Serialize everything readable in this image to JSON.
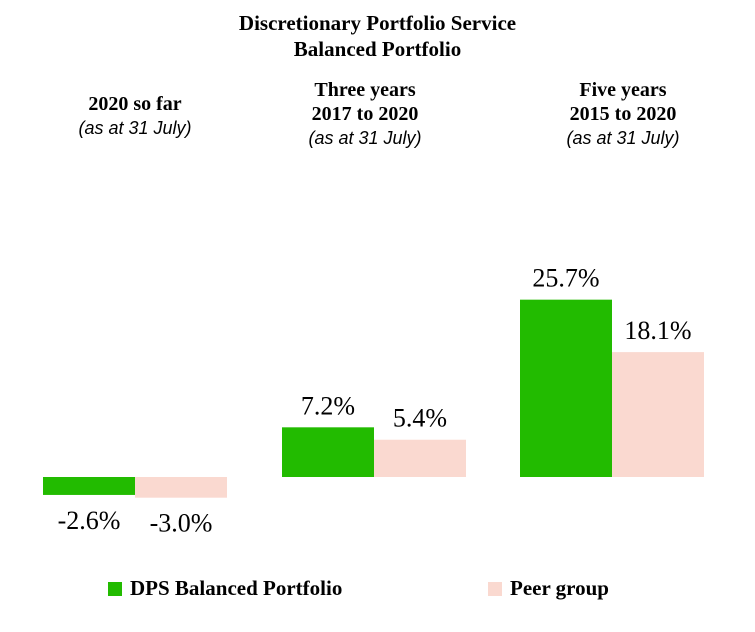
{
  "chart_data": {
    "type": "bar",
    "title": "Discretionary Portfolio Service",
    "subtitle": "Balanced Portfolio",
    "categories": [
      {
        "label": "2020 so far",
        "sublabel": "",
        "note": "(as at 31 July)"
      },
      {
        "label": "Three years",
        "sublabel": "2017 to 2020",
        "note": "(as at 31 July)"
      },
      {
        "label": "Five years",
        "sublabel": "2015 to 2020",
        "note": "(as at 31 July)"
      }
    ],
    "series": [
      {
        "name": "DPS Balanced Portfolio",
        "color": "#22bb00",
        "values": [
          -2.6,
          7.2,
          25.7
        ],
        "labels": [
          "-2.6%",
          "7.2%",
          "25.7%"
        ]
      },
      {
        "name": "Peer group",
        "color": "#fad9d0",
        "values": [
          -3.0,
          5.4,
          18.1
        ],
        "labels": [
          "-3.0%",
          "5.4%",
          "18.1%"
        ]
      }
    ],
    "unit": "%",
    "grid": false,
    "legend_position": "bottom"
  }
}
